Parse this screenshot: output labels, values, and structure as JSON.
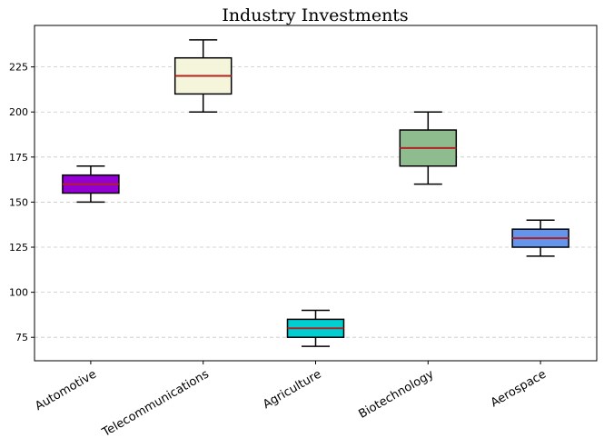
{
  "chart_data": {
    "type": "box",
    "title": "Industry Investments",
    "xlabel": "",
    "ylabel": "",
    "ylim": [
      62,
      248
    ],
    "yticks": [
      75,
      100,
      125,
      150,
      175,
      200,
      225
    ],
    "grid": "y-dashed",
    "categories": [
      "Automotive",
      "Telecommunications",
      "Agriculture",
      "Biotechnology",
      "Aerospace"
    ],
    "boxes": [
      {
        "min": 150,
        "q1": 155,
        "median": 160,
        "q3": 165,
        "max": 170,
        "color": "#9400d3"
      },
      {
        "min": 200,
        "q1": 210,
        "median": 220,
        "q3": 230,
        "max": 240,
        "color": "#f5f5dc"
      },
      {
        "min": 70,
        "q1": 75,
        "median": 80,
        "q3": 85,
        "max": 90,
        "color": "#00ced1"
      },
      {
        "min": 160,
        "q1": 170,
        "median": 180,
        "q3": 190,
        "max": 200,
        "color": "#8fbc8f"
      },
      {
        "min": 120,
        "q1": 125,
        "median": 130,
        "q3": 135,
        "max": 140,
        "color": "#6495ed"
      }
    ],
    "median_color": "#b22222"
  }
}
